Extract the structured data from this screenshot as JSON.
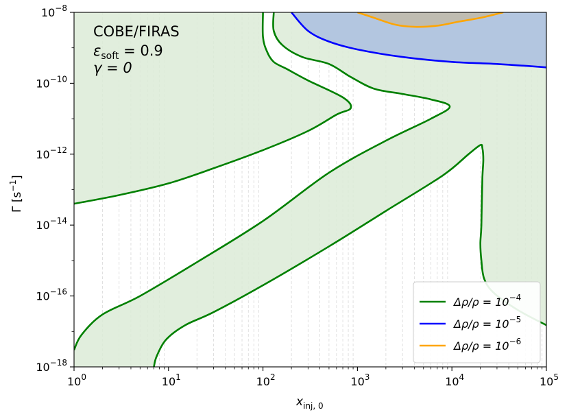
{
  "chart_data": {
    "type": "line",
    "title": "",
    "xlabel": "x",
    "xlabel_sub": "inj, 0",
    "ylabel": "Γ [s",
    "ylabel_sup": "−1",
    "ylabel_tail": "]",
    "x_scale": "log",
    "y_scale": "log",
    "xlim": [
      1,
      100000
    ],
    "ylim": [
      1e-18,
      1e-08
    ],
    "grid": "minor x gridlines (dashed)",
    "legend_position": "bottom-right",
    "x_ticks": [
      {
        "value": 1,
        "base": "10",
        "exp": "0"
      },
      {
        "value": 10,
        "base": "10",
        "exp": "1"
      },
      {
        "value": 100,
        "base": "10",
        "exp": "2"
      },
      {
        "value": 1000,
        "base": "10",
        "exp": "3"
      },
      {
        "value": 10000,
        "base": "10",
        "exp": "4"
      },
      {
        "value": 100000,
        "base": "10",
        "exp": "5"
      }
    ],
    "y_ticks": [
      {
        "value": 1e-18,
        "base": "10",
        "exp": "−18"
      },
      {
        "value": 1e-16,
        "base": "10",
        "exp": "−16"
      },
      {
        "value": 1e-14,
        "base": "10",
        "exp": "−14"
      },
      {
        "value": 1e-12,
        "base": "10",
        "exp": "−12"
      },
      {
        "value": 1e-10,
        "base": "10",
        "exp": "−10"
      },
      {
        "value": 1e-08,
        "base": "10",
        "exp": "−8"
      }
    ],
    "annotation": {
      "line1": "COBE/FIRAS",
      "line2_symbol": "ε",
      "line2_sub": "soft",
      "line2_value": " = 0.9",
      "line3": "γ = 0"
    },
    "colors": {
      "green": "#008000",
      "green_fill": "#dcebd7",
      "blue": "#0000ff",
      "blue_fill": "#b3c6e0",
      "orange": "#ffa500",
      "orange_fill": "#bfbcb1"
    },
    "series": [
      {
        "name": "Δρ/ρ = 10",
        "name_sup": "−4",
        "color": "#008000",
        "contours": [
          [
            [
              1,
              4e-14
            ],
            [
              3,
              7e-14
            ],
            [
              10,
              1.5e-13
            ],
            [
              30,
              4e-13
            ],
            [
              100,
              1.3e-12
            ],
            [
              300,
              4.5e-12
            ],
            [
              600,
              1.3e-11
            ],
            [
              850,
              2e-11
            ],
            [
              700,
              4e-11
            ],
            [
              300,
              1.2e-10
            ],
            [
              180,
              2.5e-10
            ],
            [
              130,
              4e-10
            ],
            [
              110,
              8e-10
            ],
            [
              100,
              2e-09
            ],
            [
              100,
              1e-08
            ]
          ],
          [
            [
              130,
              1e-08
            ],
            [
              130,
              3e-09
            ],
            [
              160,
              1.2e-09
            ],
            [
              260,
              5.5e-10
            ],
            [
              500,
              3.5e-10
            ],
            [
              850,
              1.5e-10
            ],
            [
              1500,
              7e-11
            ],
            [
              3000,
              5e-11
            ],
            [
              6000,
              3.5e-11
            ],
            [
              9500,
              2.2e-11
            ],
            [
              6000,
              1e-11
            ],
            [
              2000,
              2.4e-12
            ],
            [
              500,
              3e-13
            ],
            [
              100,
              1.3e-14
            ],
            [
              20,
              9e-16
            ],
            [
              5,
              1e-16
            ],
            [
              2,
              3e-17
            ],
            [
              1.2,
              8e-18
            ],
            [
              1,
              3e-18
            ]
          ],
          [
            [
              7,
              1e-18
            ],
            [
              7.5,
              2e-18
            ],
            [
              9.5,
              6e-18
            ],
            [
              15,
              1.5e-17
            ],
            [
              30,
              3.5e-17
            ],
            [
              100,
              2e-16
            ],
            [
              500,
              2.5e-15
            ],
            [
              2000,
              2.5e-14
            ],
            [
              8000,
              2.5e-13
            ],
            [
              15000,
              1e-12
            ],
            [
              20000,
              1.8e-12
            ],
            [
              21000,
              1.5e-12
            ],
            [
              21500,
              7e-13
            ],
            [
              21000,
              2e-13
            ],
            [
              20500,
              1e-14
            ],
            [
              20000,
              3e-15
            ],
            [
              20500,
              1e-15
            ],
            [
              22000,
              3e-16
            ],
            [
              28000,
              1.2e-16
            ],
            [
              50000,
              4e-17
            ],
            [
              100000,
              1.5e-17
            ]
          ]
        ]
      },
      {
        "name": "Δρ/ρ = 10",
        "name_sup": "−5",
        "color": "#0000ff",
        "contours": [
          [
            [
              200,
              1e-08
            ],
            [
              300,
              3e-09
            ],
            [
              500,
              1.5e-09
            ],
            [
              1000,
              9e-10
            ],
            [
              3000,
              5.5e-10
            ],
            [
              10000,
              4e-10
            ],
            [
              30000,
              3.5e-10
            ],
            [
              100000,
              2.8e-10
            ]
          ]
        ]
      },
      {
        "name": "Δρ/ρ = 10",
        "name_sup": "−6",
        "color": "#ffa500",
        "contours": [
          [
            [
              1000,
              1e-08
            ],
            [
              1500,
              7e-09
            ],
            [
              2500,
              4.5e-09
            ],
            [
              4000,
              3.9e-09
            ],
            [
              7000,
              4.2e-09
            ],
            [
              12000,
              5.5e-09
            ],
            [
              20000,
              7e-09
            ],
            [
              35000,
              1e-08
            ]
          ]
        ]
      }
    ]
  }
}
